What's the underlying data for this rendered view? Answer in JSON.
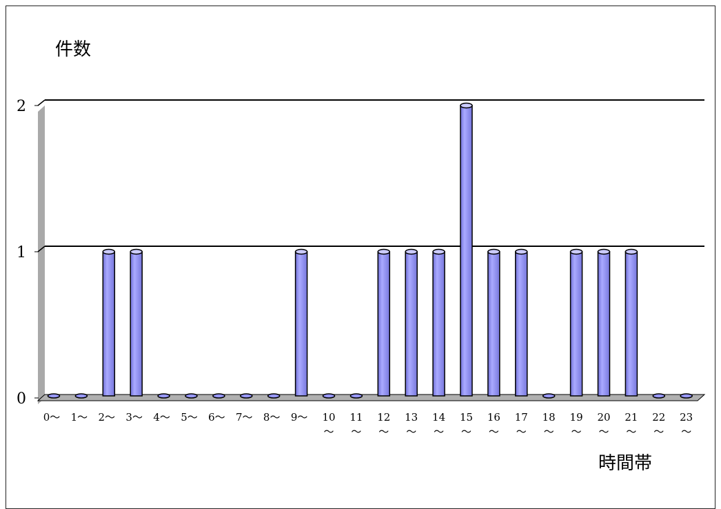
{
  "chart_data": {
    "type": "bar",
    "title": "",
    "ylabel": "件数",
    "xlabel": "時間帯",
    "categories": [
      "0～",
      "1～",
      "2～",
      "3～",
      "4～",
      "5～",
      "6～",
      "7～",
      "8～",
      "9～",
      "10～",
      "11～",
      "12～",
      "13～",
      "14～",
      "15～",
      "16～",
      "17～",
      "18～",
      "19～",
      "20～",
      "21～",
      "22～",
      "23～"
    ],
    "values": [
      0,
      0,
      1,
      1,
      0,
      0,
      0,
      0,
      0,
      1,
      0,
      0,
      1,
      1,
      1,
      2,
      1,
      1,
      0,
      1,
      1,
      1,
      0,
      0
    ],
    "ylim": [
      0,
      2
    ],
    "yticks": [
      0,
      1,
      2
    ],
    "grid": true,
    "legend": "none"
  },
  "colors": {
    "bar": "#9999ff",
    "bar_dark": "#6666cc",
    "floor": "#b0b0b0",
    "wall": "#a9a9a9"
  }
}
